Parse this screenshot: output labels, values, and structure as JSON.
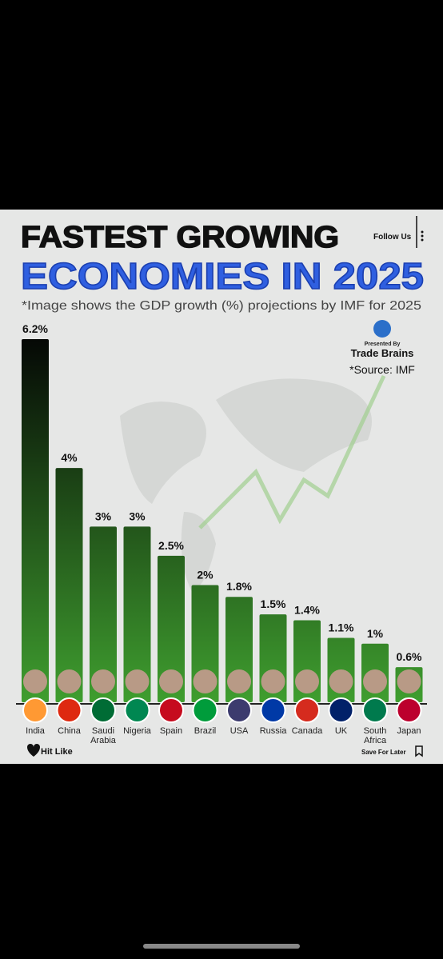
{
  "chart_data": {
    "type": "bar",
    "title": "FASTEST GROWING",
    "subtitle": "ECONOMIES IN 2025",
    "note": "*Image shows the GDP growth (%) projections by IMF for 2025",
    "annotations": [
      "Follow Us",
      "Presented By",
      "Trade Brains",
      "*Source: IMF",
      "Hit Like",
      "Save For Later"
    ],
    "categories": [
      "India",
      "China",
      "Saudi Arabia",
      "Nigeria",
      "Spain",
      "Brazil",
      "USA",
      "Russia",
      "Canada",
      "UK",
      "South Africa",
      "Japan"
    ],
    "values": [
      6.2,
      4,
      3,
      3,
      2.5,
      2,
      1.8,
      1.5,
      1.4,
      1.1,
      1,
      0.6
    ],
    "value_labels": [
      "6.2%",
      "4%",
      "3%",
      "3%",
      "2.5%",
      "2%",
      "1.8%",
      "1.5%",
      "1.4%",
      "1.1%",
      "1%",
      "0.6%"
    ],
    "color": "#3f9e2f"
  }
}
